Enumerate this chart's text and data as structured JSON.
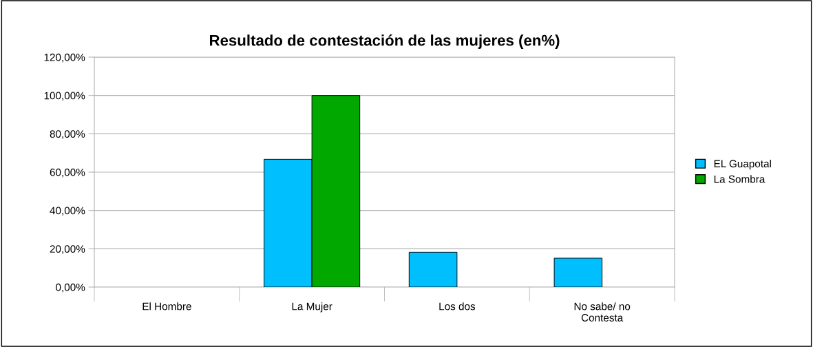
{
  "chart_data": {
    "type": "bar",
    "title": "Resultado de contestación de las mujeres (en%)",
    "categories": [
      "El Hombre",
      "La Mujer",
      "Los dos",
      "No sabe/ no\nContesta"
    ],
    "series": [
      {
        "name": "EL Guapotal",
        "color": "#00bfff",
        "values": [
          0,
          66.7,
          18.2,
          15.1
        ]
      },
      {
        "name": "La Sombra",
        "color": "#00a800",
        "values": [
          0,
          100,
          0,
          0
        ]
      }
    ],
    "ylim": [
      0,
      120
    ],
    "yticks": [
      {
        "value": 0,
        "label": "0,00%"
      },
      {
        "value": 20,
        "label": "20,00%"
      },
      {
        "value": 40,
        "label": "40,00%"
      },
      {
        "value": 60,
        "label": "60,00%"
      },
      {
        "value": 80,
        "label": "80,00%"
      },
      {
        "value": 100,
        "label": "100,00%"
      },
      {
        "value": 120,
        "label": "120,00%"
      }
    ],
    "grid": "y",
    "legend": "right"
  }
}
